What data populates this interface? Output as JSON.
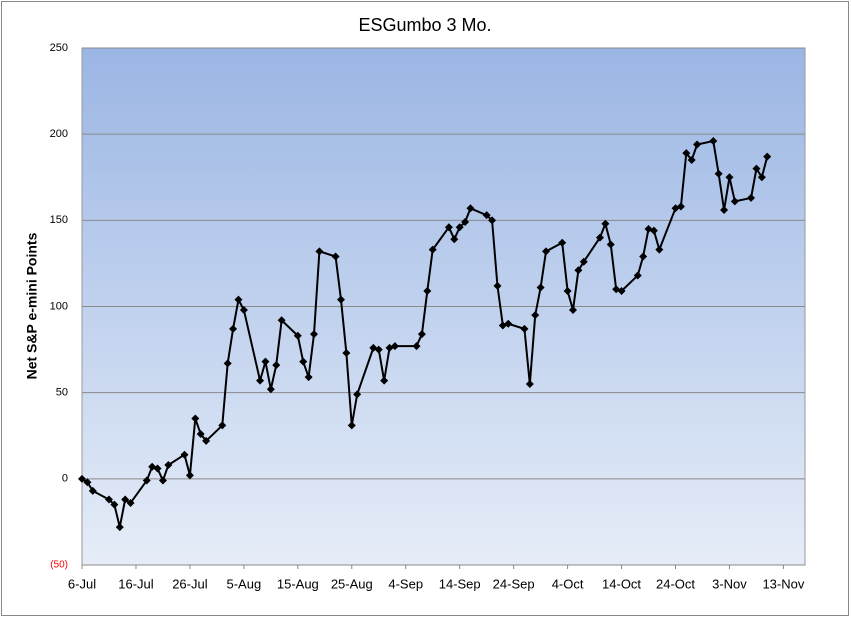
{
  "chart_data": {
    "type": "line",
    "title": "ESGumbo 3 Mo.",
    "y_label": "Net S&P e-mini Points",
    "x": [
      0,
      1,
      2,
      5,
      6,
      7,
      8,
      9,
      12,
      13,
      14,
      15,
      16,
      19,
      20,
      21,
      22,
      23,
      26,
      27,
      28,
      29,
      30,
      33,
      34,
      35,
      36,
      37,
      40,
      41,
      42,
      43,
      44,
      47,
      48,
      49,
      50,
      51,
      54,
      55,
      56,
      57,
      58,
      62,
      63,
      64,
      65,
      68,
      69,
      70,
      71,
      72,
      75,
      76,
      77,
      78,
      79,
      82,
      83,
      84,
      85,
      86,
      89,
      90,
      91,
      92,
      93,
      96,
      97,
      98,
      99,
      100,
      103,
      104,
      105,
      106,
      107,
      110,
      111,
      112,
      113,
      114,
      117,
      118,
      119,
      120,
      121,
      124,
      125,
      126,
      127
    ],
    "series": [
      {
        "name": "Net S&P e-mini Points",
        "color": "#000000",
        "values": [
          0,
          -2,
          -7,
          -12,
          -15,
          -28,
          -12,
          -14,
          -1,
          7,
          6,
          -1,
          8,
          14,
          2,
          35,
          26,
          22,
          31,
          67,
          87,
          104,
          98,
          57,
          68,
          52,
          66,
          92,
          83,
          68,
          59,
          84,
          132,
          129,
          104,
          73,
          31,
          49,
          76,
          75,
          57,
          76,
          77,
          77,
          84,
          109,
          133,
          146,
          139,
          146,
          149,
          157,
          153,
          150,
          112,
          89,
          90,
          87,
          55,
          95,
          111,
          132,
          137,
          109,
          98,
          121,
          126,
          140,
          148,
          136,
          110,
          109,
          118,
          129,
          145,
          144,
          133,
          157,
          158,
          189,
          185,
          194,
          196,
          177,
          156,
          175,
          161,
          163,
          180,
          175,
          187
        ]
      }
    ],
    "xlim": [
      0,
      134
    ],
    "xticks": [
      {
        "value": 0,
        "label": "6-Jul"
      },
      {
        "value": 10,
        "label": "16-Jul"
      },
      {
        "value": 20,
        "label": "26-Jul"
      },
      {
        "value": 30,
        "label": "5-Aug"
      },
      {
        "value": 40,
        "label": "15-Aug"
      },
      {
        "value": 50,
        "label": "25-Aug"
      },
      {
        "value": 60,
        "label": "4-Sep"
      },
      {
        "value": 70,
        "label": "14-Sep"
      },
      {
        "value": 80,
        "label": "24-Sep"
      },
      {
        "value": 90,
        "label": "4-Oct"
      },
      {
        "value": 100,
        "label": "14-Oct"
      },
      {
        "value": 110,
        "label": "24-Oct"
      },
      {
        "value": 120,
        "label": "3-Nov"
      },
      {
        "value": 130,
        "label": "13-Nov"
      }
    ],
    "ylim": [
      -50,
      250
    ],
    "yticks": [
      {
        "value": -50,
        "label": "(50)"
      },
      0,
      50,
      100,
      150,
      200,
      250
    ],
    "grid": true
  }
}
